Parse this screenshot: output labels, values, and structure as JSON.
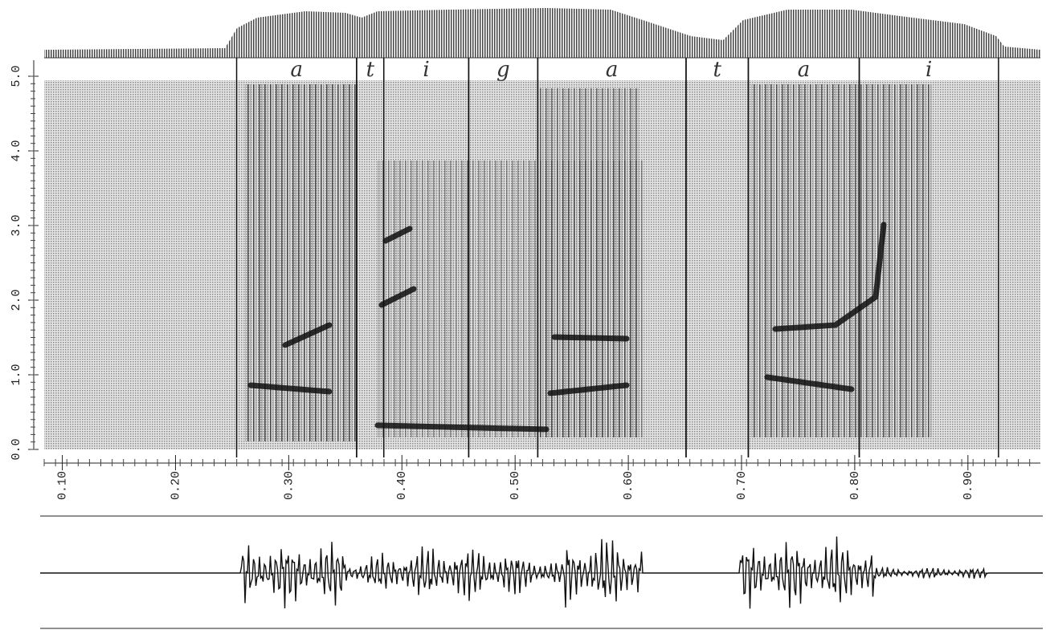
{
  "chart_data": {
    "type": "spectrogram",
    "xlim": [
      0.084,
      0.964
    ],
    "ylim": [
      0,
      5
    ],
    "yticks": [
      {
        "value": 0,
        "label": "0.0"
      },
      {
        "value": 1,
        "label": "1.0"
      },
      {
        "value": 2,
        "label": "2.0"
      },
      {
        "value": 3,
        "label": "3.0"
      },
      {
        "value": 4,
        "label": "4.0"
      },
      {
        "value": 5,
        "label": "5.0"
      }
    ],
    "xticks": [
      {
        "value": 0.1,
        "label": "0.10"
      },
      {
        "value": 0.2,
        "label": "0.20"
      },
      {
        "value": 0.3,
        "label": "0.30"
      },
      {
        "value": 0.4,
        "label": "0.40"
      },
      {
        "value": 0.5,
        "label": "0.50"
      },
      {
        "value": 0.6,
        "label": "0.60"
      },
      {
        "value": 0.7,
        "label": "0.70"
      },
      {
        "value": 0.8,
        "label": "0.80"
      },
      {
        "value": 0.9,
        "label": "0.90"
      }
    ],
    "segments": [
      {
        "label": "a",
        "start": 0.254,
        "end": 0.36
      },
      {
        "label": "t",
        "start": 0.36,
        "end": 0.384
      },
      {
        "label": "i",
        "start": 0.384,
        "end": 0.459
      },
      {
        "label": "g",
        "start": 0.459,
        "end": 0.52
      },
      {
        "label": "a",
        "start": 0.52,
        "end": 0.651
      },
      {
        "label": "t",
        "start": 0.651,
        "end": 0.706
      },
      {
        "label": "a",
        "start": 0.706,
        "end": 0.804
      },
      {
        "label": "i",
        "start": 0.804,
        "end": 0.927
      }
    ]
  }
}
